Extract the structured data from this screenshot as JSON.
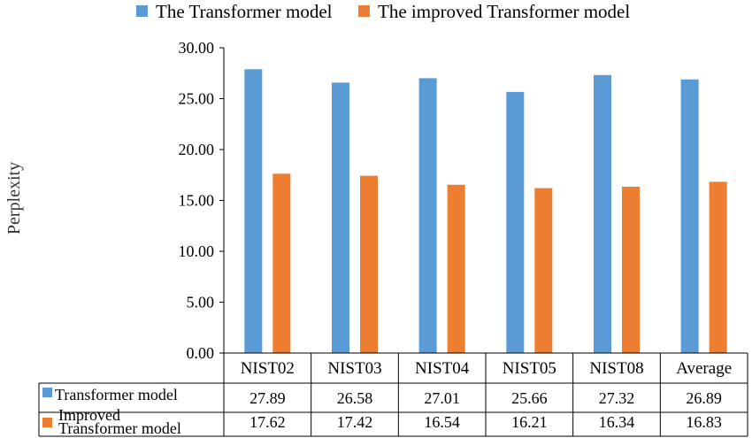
{
  "chart_data": {
    "type": "bar",
    "ylabel": "Perplexity",
    "ylim": [
      0,
      30
    ],
    "ytick_step": 5,
    "ytick_labels": [
      "0.00",
      "5.00",
      "10.00",
      "15.00",
      "20.00",
      "25.00",
      "30.00"
    ],
    "grid": false,
    "legend_position": "top",
    "categories": [
      "NIST02",
      "NIST03",
      "NIST04",
      "NIST05",
      "NIST08",
      "Average"
    ],
    "series": [
      {
        "name": "The Transformer model",
        "table_label": "Transformer model",
        "color": "#5b9bd5",
        "values": [
          27.89,
          26.58,
          27.01,
          25.66,
          27.32,
          26.89
        ],
        "value_labels": [
          "27.89",
          "26.58",
          "27.01",
          "25.66",
          "27.32",
          "26.89"
        ]
      },
      {
        "name": "The improved Transformer model",
        "table_label_lines": [
          "Improved",
          "Transformer model"
        ],
        "color": "#ed7d31",
        "values": [
          17.62,
          17.42,
          16.54,
          16.21,
          16.34,
          16.83
        ],
        "value_labels": [
          "17.62",
          "17.42",
          "16.54",
          "16.21",
          "16.34",
          "16.83"
        ]
      }
    ]
  }
}
